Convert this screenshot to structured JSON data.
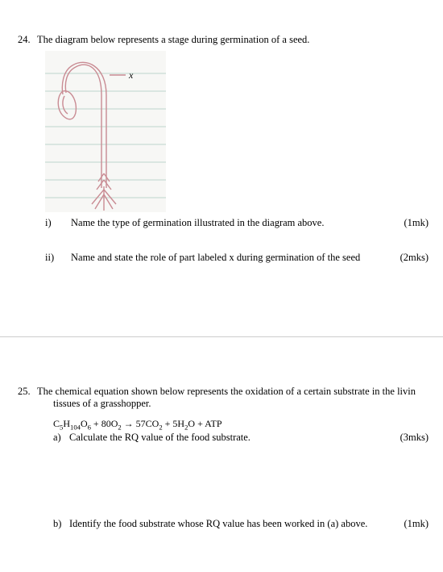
{
  "q24": {
    "number": "24.",
    "prompt": "The diagram below represents a stage during germination of a seed.",
    "diagram": {
      "background": "#f7f7f5",
      "ruled_line_color": "#bcd6cd",
      "stroke_color": "#c98b93",
      "label_x": "x"
    },
    "parts": {
      "i": {
        "label": "i)",
        "text": "Name the type of germination illustrated in the diagram above.",
        "marks": "(1mk)"
      },
      "ii": {
        "label": "ii)",
        "text": "Name and state the role of part labeled x during germination of the seed",
        "marks": "(2mks)"
      }
    }
  },
  "q25": {
    "number": "25.",
    "prompt_line1": "The chemical equation shown below represents the oxidation of a certain substrate in the livin",
    "prompt_line2": "tissues of a grasshopper.",
    "equation_html": "C<sub>5</sub>H<sub>104</sub>O<sub>6</sub> + 80O<sub>2</sub> → 57CO<sub>2</sub> + 5H<sub>2</sub>O + ATP",
    "parts": {
      "a": {
        "label": "a)",
        "text": "Calculate the RQ value of the food substrate.",
        "marks": "(3mks)"
      },
      "b": {
        "label": "b)",
        "text": "Identify the food substrate whose RQ value has been worked in (a) above.",
        "marks": "(1mk)"
      }
    }
  }
}
